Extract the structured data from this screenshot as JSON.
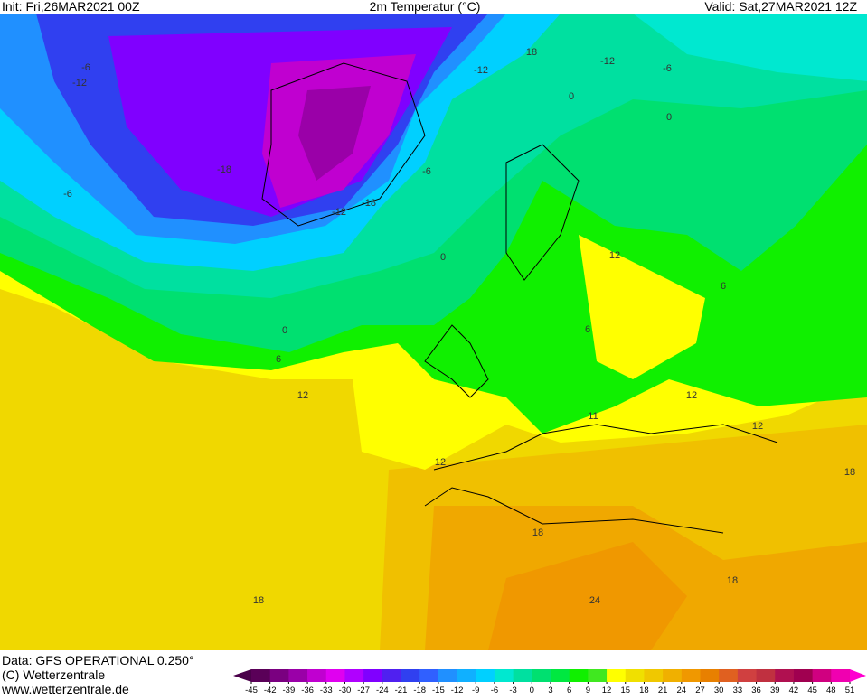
{
  "header": {
    "init": "Init: Fri,26MAR2021 00Z",
    "title": "2m Temperatur (°C)",
    "valid": "Valid: Sat,27MAR2021 12Z"
  },
  "footer": {
    "data_source": "Data: GFS OPERATIONAL 0.250°",
    "copyright": "(C) Wetterzentrale",
    "url": "www.wetterzentrale.de"
  },
  "colorbar": {
    "ticks": [
      -45,
      -42,
      -39,
      -36,
      -33,
      -30,
      -27,
      -24,
      -21,
      -18,
      -15,
      -12,
      -9,
      -6,
      -3,
      0,
      3,
      6,
      9,
      12,
      15,
      18,
      21,
      24,
      27,
      30,
      33,
      36,
      39,
      42,
      45,
      48,
      51
    ],
    "colors": [
      "#4a004a",
      "#5a0058",
      "#7a0080",
      "#9a00a8",
      "#c000d0",
      "#e000f0",
      "#b000ff",
      "#8000ff",
      "#5020f0",
      "#3040f0",
      "#3060ff",
      "#2090ff",
      "#10b0ff",
      "#00d0ff",
      "#00e8d0",
      "#00e0a0",
      "#00e070",
      "#00e840",
      "#10f000",
      "#40e820",
      "#ffff00",
      "#f0e000",
      "#f0c800",
      "#f0b000",
      "#f09800",
      "#e88000",
      "#e06020",
      "#d04040",
      "#c03040",
      "#b01050",
      "#a00050",
      "#d00080",
      "#f000b0",
      "#ff00d0"
    ]
  },
  "map": {
    "contour_labels": [
      -6,
      -12,
      -18,
      -12,
      -18,
      -6,
      0,
      0,
      6,
      12,
      -6,
      18,
      -12,
      -6,
      0,
      0,
      6,
      12,
      6,
      12,
      12,
      11,
      12,
      18,
      18,
      18,
      24,
      18,
      -12
    ]
  }
}
